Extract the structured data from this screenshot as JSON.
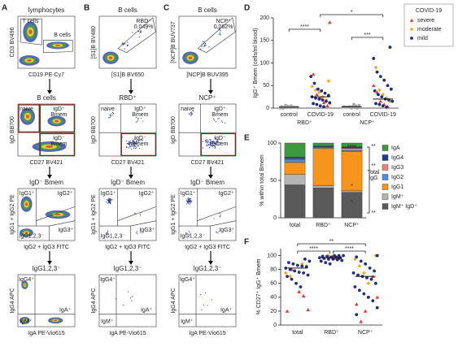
{
  "panel_labels": [
    "A",
    "B",
    "C",
    "D",
    "E",
    "F"
  ],
  "panel_a": {
    "rows": [
      {
        "title": "lymphocytes",
        "y_label": "CD3 BV496",
        "x_label": "CD19 PE-Cy7",
        "gates": [
          [
            "T cells"
          ],
          [
            "B cells"
          ]
        ]
      },
      {
        "title": "B cells",
        "y_label": "IgD BB700",
        "x_label": "CD27 BV421",
        "gates": [
          [
            "naive"
          ],
          [
            "IgD⁺",
            "Bmem"
          ],
          [
            "IgD⁻",
            "Bmem"
          ]
        ]
      },
      {
        "title": "IgD⁻ Bmem",
        "y_label": "IgG1 + IgG2 PE",
        "x_label": "IgG2 + IgG3 FITC",
        "gates": [
          [
            "IgG1⁺"
          ],
          [
            "IgG2⁺"
          ],
          [
            "IgG3⁺"
          ],
          [
            "IgG1,2,3⁻"
          ]
        ]
      },
      {
        "title": "IgG1,2,3⁻",
        "y_label": "IgG4 APC",
        "x_label": "IgA PE-Vio615",
        "gates": [
          [
            "IgG4⁺"
          ],
          [
            "IgA⁺"
          ],
          [
            "IgM⁺"
          ]
        ]
      }
    ]
  },
  "panel_b": {
    "rows": [
      {
        "title": "B cells",
        "y_label": "[S1]B BV480",
        "x_label": "[S1]B BV650",
        "gates": [
          [
            "RBD⁺",
            "0.049%"
          ]
        ]
      },
      {
        "title": "RBD⁺",
        "y_label": "IgD BB700",
        "x_label": "CD27 BV421",
        "gates": [
          [
            "naive"
          ],
          [
            "IgD⁺",
            "Bmem"
          ],
          [
            "IgD⁻",
            "Bmem"
          ]
        ]
      },
      {
        "title": "IgD⁻ Bmem",
        "y_label": "IgG1 + IgG2 PE",
        "x_label": "IgG2 + IgG3 FITC",
        "gates": [
          [
            "IgG1⁺"
          ],
          [
            "IgG2⁺"
          ],
          [
            "IgG3⁺"
          ],
          [
            "IgG1,2,3⁻"
          ]
        ]
      },
      {
        "title": "IgG1,2,3⁻",
        "y_label": "IgG4 APC",
        "x_label": "IgA PE-Vio615",
        "gates": [
          [
            "IgG4⁺"
          ],
          [
            "IgA⁺"
          ],
          [
            "IgM⁺"
          ]
        ]
      }
    ]
  },
  "panel_c": {
    "rows": [
      {
        "title": "B cells",
        "y_label": "[NCP]B BUV737",
        "x_label": "[NCP]B BUV395",
        "gates": [
          [
            "NCP⁺",
            "0.062%"
          ]
        ]
      },
      {
        "title": "NCP⁺",
        "y_label": "IgD BB700",
        "x_label": "CD27 BV421",
        "gates": [
          [
            "naive"
          ],
          [
            "IgD⁺",
            "Bmem"
          ],
          [
            "IgD⁻",
            "Bmem"
          ]
        ]
      },
      {
        "title": "IgD⁻ Bmem",
        "y_label": "IgG1 + IgG2 PE",
        "x_label": "IgG2 + IgG3 FITC",
        "gates": [
          [
            "IgG1⁺"
          ],
          [
            "IgG2⁺"
          ],
          [
            "IgG3⁺"
          ],
          [
            "IgG1,2,3⁻"
          ]
        ]
      },
      {
        "title": "IgG1,2,3⁻",
        "y_label": "IgG4 APC",
        "x_label": "IgA PE-Vio615",
        "gates": [
          [
            "IgG4⁺"
          ],
          [
            "IgA⁺"
          ],
          [
            "IgM⁺"
          ]
        ]
      }
    ]
  },
  "panel_d": {
    "type": "scatter",
    "y_label": "IgG⁺ Bmem (cells/ml blood)",
    "categories": [
      "control",
      "COVID-19",
      "control",
      "COVID-19"
    ],
    "group_labels": [
      "RBD⁺",
      "NCP⁺"
    ],
    "ylim": [
      0,
      200
    ],
    "yticks": [
      0,
      50,
      100,
      150,
      200
    ],
    "controls": {
      "color": "#a6a6a6",
      "marker": "circle",
      "values": [
        [
          0,
          0,
          1,
          1,
          2,
          2,
          3,
          3,
          4,
          5,
          2,
          1,
          0,
          6
        ],
        [],
        [
          0,
          1,
          1,
          2,
          2,
          3,
          4,
          5,
          6,
          3,
          2,
          1,
          8,
          0
        ],
        []
      ]
    },
    "legend_title": "COVID-19",
    "series": [
      {
        "name": "severe",
        "color": "#e53935",
        "marker": "triangle",
        "values": [
          [],
          [
            190,
            75,
            30,
            22,
            12,
            5
          ],
          [],
          [
            50,
            35,
            15,
            8,
            3
          ]
        ]
      },
      {
        "name": "moderate",
        "color": "#f5a623",
        "marker": "diamond",
        "values": [
          [],
          [
            60,
            48,
            40,
            35,
            25,
            18,
            10
          ],
          [],
          [
            90,
            40,
            30,
            22,
            15
          ]
        ]
      },
      {
        "name": "mild",
        "color": "#1f2d7a",
        "marker": "circle",
        "values": [
          [],
          [
            70,
            55,
            42,
            38,
            33,
            28,
            25,
            22,
            20,
            18,
            15,
            12,
            10,
            8,
            5,
            3
          ],
          [],
          [
            135,
            110,
            80,
            70,
            62,
            50,
            42,
            38,
            30,
            25,
            20,
            18,
            15,
            10,
            8,
            5,
            2
          ]
        ]
      }
    ],
    "medians": [
      2,
      25,
      3,
      20
    ],
    "significance": [
      "****",
      "***",
      "*"
    ]
  },
  "panel_e": {
    "type": "stacked_bar",
    "y_label": "% within total Bmem",
    "categories": [
      "total",
      "RBD⁺",
      "NCP⁺"
    ],
    "ylim": [
      0,
      100
    ],
    "yticks": [
      0,
      50,
      100
    ],
    "series": [
      {
        "name": "IgM⁺ IgD⁺",
        "color": "#5a5a5a",
        "values": [
          44,
          40,
          34
        ]
      },
      {
        "name": "IgM⁺",
        "color": "#b5b5b5",
        "values": [
          14,
          3,
          2
        ]
      },
      {
        "name": "IgG1",
        "color": "#f7941d",
        "values": [
          16,
          50,
          53
        ]
      },
      {
        "name": "IgG2",
        "color": "#4a90d9",
        "values": [
          4,
          1,
          1
        ]
      },
      {
        "name": "IgG3",
        "color": "#f08080",
        "values": [
          1,
          1,
          3
        ]
      },
      {
        "name": "IgG4",
        "color": "#1f3a93",
        "values": [
          2,
          1,
          2
        ]
      },
      {
        "name": "IgA",
        "color": "#3c9a3c",
        "values": [
          19,
          4,
          5
        ]
      }
    ],
    "significance": [
      "****",
      "**",
      "**",
      "**"
    ],
    "bracket_label": [
      "Total",
      "IgG"
    ],
    "inbar_marks": [
      "*",
      "*"
    ]
  },
  "panel_f": {
    "type": "scatter",
    "y_label": "% CD27⁺ IgG⁺ Bmem",
    "categories": [
      "total",
      "RBD⁺",
      "NCP⁺"
    ],
    "ylim": [
      0,
      110
    ],
    "yticks": [
      0,
      20,
      40,
      60,
      80,
      100
    ],
    "series": [
      {
        "name": "severe",
        "color": "#e53935",
        "marker": "triangle",
        "values": [
          [
            48,
            42,
            22,
            20,
            80
          ],
          [
            98,
            96
          ],
          [
            70,
            40,
            30,
            5,
            20
          ]
        ]
      },
      {
        "name": "moderate",
        "color": "#f5a623",
        "marker": "diamond",
        "values": [
          [
            88,
            85,
            75,
            70
          ],
          [
            100,
            99,
            97
          ],
          [
            100,
            95,
            85,
            75,
            60
          ]
        ]
      },
      {
        "name": "mild",
        "color": "#1f2d7a",
        "marker": "circle",
        "values": [
          [
            95,
            92,
            90,
            88,
            86,
            85,
            84,
            82,
            80,
            78,
            76,
            75,
            72,
            70,
            66,
            60,
            55
          ],
          [
            100,
            100,
            99,
            99,
            98,
            98,
            97,
            97,
            96,
            95,
            95,
            94,
            93,
            92,
            90,
            88,
            100,
            96
          ],
          [
            100,
            98,
            92,
            88,
            82,
            78,
            75,
            72,
            70,
            68,
            66,
            60,
            55,
            50,
            45,
            40,
            35,
            25,
            15
          ]
        ]
      }
    ],
    "medians": [
      82,
      97,
      70
    ],
    "significance": [
      "****",
      "****",
      "**"
    ]
  }
}
